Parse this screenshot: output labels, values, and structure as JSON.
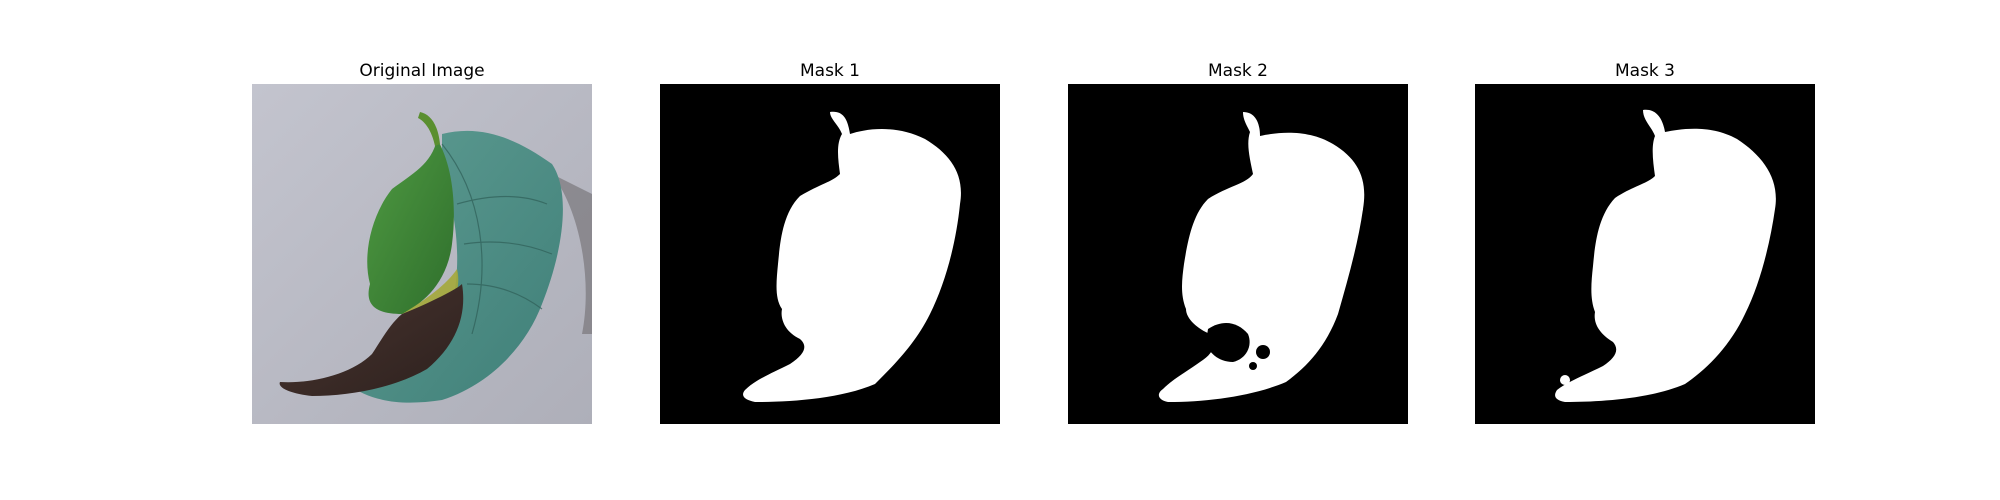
{
  "figure": {
    "panels": [
      {
        "title": "Original Image"
      },
      {
        "title": "Mask 1"
      },
      {
        "title": "Mask 2"
      },
      {
        "title": "Mask 3"
      }
    ]
  },
  "colors": {
    "mask_background": "#000000",
    "mask_foreground": "#ffffff",
    "photo_background": "#b9bac4",
    "leaf_green": "#3f8a3a",
    "leaf_teal": "#4f8f86",
    "leaf_diseased": "#3a2a26"
  }
}
